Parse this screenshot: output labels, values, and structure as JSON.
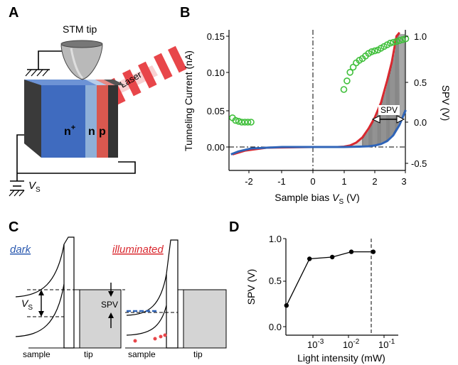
{
  "panels": {
    "a": {
      "letter": "A",
      "stm_tip": "STM tip",
      "laser": "Laser",
      "n_plus": "n",
      "n_plus_sup": "+",
      "n": "n",
      "p": "p",
      "vs_main": "V",
      "vs_sub": "S"
    },
    "b": {
      "letter": "B",
      "ylabel_left": "Tunneling Current (nA)",
      "ylabel_right": "SPV (V)",
      "xlabel_main": "Sample bias ",
      "xlabel_v": "V",
      "xlabel_sub": "S",
      "xlabel_unit": " (V)",
      "spv_annotation": "SPV",
      "xticks": [
        "-2",
        "-1",
        "0",
        "1",
        "2",
        "3"
      ],
      "yticks_left": [
        "0.00",
        "0.05",
        "0.10",
        "0.15"
      ],
      "yticks_right": [
        "-0.5",
        "0.0",
        "0.5",
        "1.0"
      ]
    },
    "c": {
      "letter": "C",
      "dark": "dark",
      "illuminated": "illuminated",
      "vs_main": "V",
      "vs_sub": "S",
      "spv": "SPV",
      "sample_left": "sample",
      "tip_left": "tip",
      "sample_right": "sample",
      "tip_right": "tip"
    },
    "d": {
      "letter": "D",
      "ylabel": "SPV (V)",
      "xlabel": "Light intensity (mW)",
      "yticks": [
        "0.0",
        "0.5",
        "1.0"
      ],
      "xticks": [
        {
          "base": "10",
          "exp": "-3"
        },
        {
          "base": "10",
          "exp": "-2"
        },
        {
          "base": "10",
          "exp": "-1"
        }
      ]
    }
  },
  "colors": {
    "blue_block": "#3f6bbf",
    "light_blue": "#8fb0d8",
    "red_block": "#d9584f",
    "laser": "#e8464a",
    "iv_blue": "#2f64b8",
    "iv_red": "#d9282f",
    "spv_green": "#3fbf3a",
    "gray_fill": "#d4d4d4"
  },
  "chart_data": [
    {
      "type": "line",
      "panel": "B",
      "xlabel": "Sample bias V_S (V)",
      "ylabel": "Tunneling Current (nA)",
      "y2label": "SPV (V)",
      "xlim": [
        -2.7,
        3.0
      ],
      "ylim": [
        -0.015,
        0.155
      ],
      "y2lim": [
        -0.58,
        1.05
      ],
      "series": [
        {
          "kind": "dark-current",
          "color": "#d9282f",
          "x": [
            -2.6,
            -2.2,
            -1.5,
            0,
            0.8,
            1.0,
            1.2,
            1.4,
            1.6,
            1.8,
            2.0,
            2.2,
            2.4,
            2.55,
            2.7,
            2.8
          ],
          "y": [
            -0.01,
            -0.005,
            -0.001,
            0.0,
            0.0,
            0.0005,
            0.002,
            0.006,
            0.013,
            0.025,
            0.04,
            0.06,
            0.09,
            0.115,
            0.15,
            0.155
          ]
        },
        {
          "kind": "illuminated-current",
          "color": "#2f64b8",
          "x": [
            -2.65,
            -2.4,
            -2.0,
            -1.5,
            -1.0,
            0,
            1.0,
            1.5,
            1.8,
            2.0,
            2.2,
            2.4,
            2.6,
            2.8,
            3.0
          ],
          "y": [
            -0.01,
            -0.006,
            -0.002,
            -0.001,
            0.0,
            0.0,
            0.0,
            0.0005,
            0.001,
            0.002,
            0.004,
            0.008,
            0.016,
            0.03,
            0.05
          ]
        },
        {
          "kind": "spv",
          "axis": "right",
          "color": "#3fbf3a",
          "x": [
            -2.6,
            -2.5,
            -2.4,
            -2.3,
            -2.2,
            -2.1,
            -2.0,
            1.0,
            1.1,
            1.2,
            1.3,
            1.4,
            1.5,
            1.6,
            1.7,
            1.8,
            1.9,
            2.0,
            2.1,
            2.2,
            2.3,
            2.4,
            2.5,
            2.6,
            2.7,
            2.8,
            2.9,
            3.0
          ],
          "y": [
            0.05,
            0.02,
            0.01,
            0.0,
            0.0,
            0.0,
            0.0,
            0.38,
            0.48,
            0.58,
            0.64,
            0.69,
            0.72,
            0.74,
            0.77,
            0.8,
            0.82,
            0.83,
            0.84,
            0.86,
            0.88,
            0.9,
            0.92,
            0.93,
            0.94,
            0.95,
            0.96,
            0.97
          ]
        }
      ]
    },
    {
      "type": "line",
      "panel": "D",
      "xlabel": "Light intensity (mW)",
      "ylabel": "SPV (V)",
      "xscale": "log",
      "xlim": [
        0.00013,
        0.1
      ],
      "ylim": [
        -0.05,
        1.0
      ],
      "x": [
        0.00018,
        0.0008,
        0.0035,
        0.012,
        0.05
      ],
      "y": [
        0.24,
        0.77,
        0.79,
        0.85,
        0.85
      ],
      "vline_x": 0.03
    }
  ]
}
